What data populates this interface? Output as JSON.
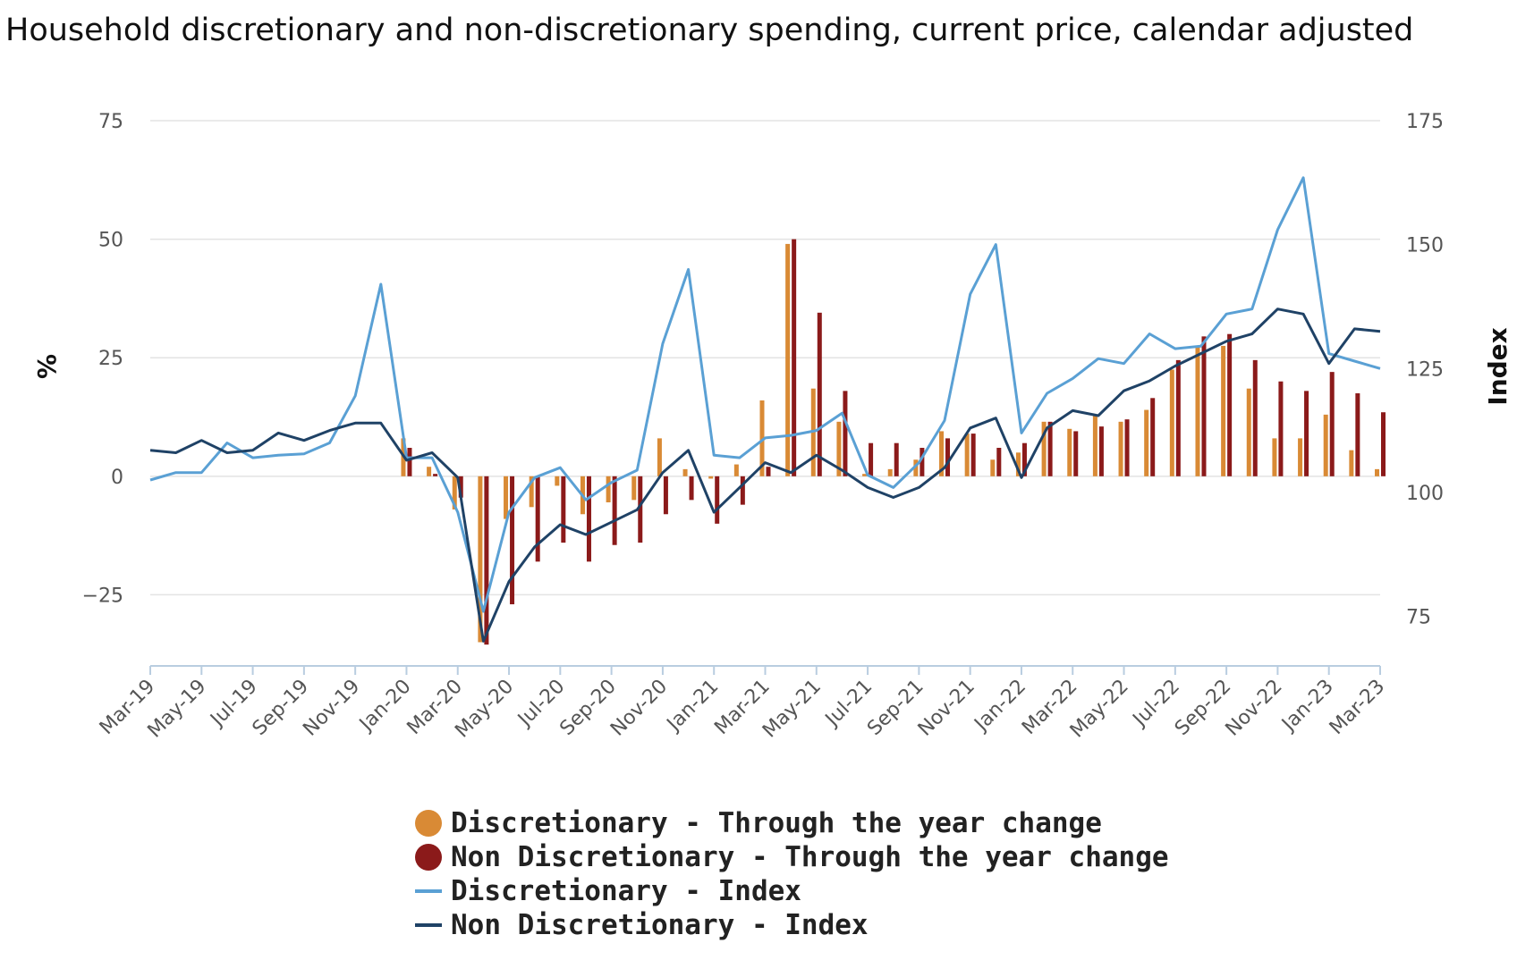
{
  "title": "Household discretionary and non-discretionary spending, current price, calendar adjusted",
  "chart_data": {
    "type": "bar",
    "title": "Household discretionary and non-discretionary spending, current price, calendar adjusted",
    "ylabel": "%",
    "y2label": "Index",
    "ylim": [
      -40,
      75
    ],
    "y2lim": [
      65,
      175
    ],
    "yticks": [
      -25,
      0,
      25,
      50,
      75
    ],
    "y2ticks": [
      75,
      100,
      125,
      150,
      175
    ],
    "ytick_labels": [
      "−25",
      "0",
      "25",
      "50",
      "75"
    ],
    "y2tick_labels": [
      "75",
      "100",
      "125",
      "150",
      "175"
    ],
    "grid": true,
    "legend_position": "bottom",
    "x": [
      "Mar-19",
      "Apr-19",
      "May-19",
      "Jun-19",
      "Jul-19",
      "Aug-19",
      "Sep-19",
      "Oct-19",
      "Nov-19",
      "Dec-19",
      "Jan-20",
      "Feb-20",
      "Mar-20",
      "Apr-20",
      "May-20",
      "Jun-20",
      "Jul-20",
      "Aug-20",
      "Sep-20",
      "Oct-20",
      "Nov-20",
      "Dec-20",
      "Jan-21",
      "Feb-21",
      "Mar-21",
      "Apr-21",
      "May-21",
      "Jun-21",
      "Jul-21",
      "Aug-21",
      "Sep-21",
      "Oct-21",
      "Nov-21",
      "Dec-21",
      "Jan-22",
      "Feb-22",
      "Mar-22",
      "Apr-22",
      "May-22",
      "Jun-22",
      "Jul-22",
      "Aug-22",
      "Sep-22",
      "Oct-22",
      "Nov-22",
      "Dec-22",
      "Jan-23",
      "Feb-23",
      "Mar-23"
    ],
    "xtick_labels": [
      "Mar-19",
      "May-19",
      "Jul-19",
      "Sep-19",
      "Nov-19",
      "Jan-20",
      "Mar-20",
      "May-20",
      "Jul-20",
      "Sep-20",
      "Nov-20",
      "Jan-21",
      "Mar-21",
      "May-21",
      "Jul-21",
      "Sep-21",
      "Nov-21",
      "Jan-22",
      "Mar-22",
      "May-22",
      "Jul-22",
      "Sep-22",
      "Nov-22",
      "Jan-23",
      "Mar-23"
    ],
    "series": [
      {
        "name": "Discretionary - Through the year change",
        "type": "bar",
        "axis": "left",
        "color": "#d98a35",
        "values": [
          null,
          null,
          null,
          null,
          null,
          null,
          null,
          null,
          null,
          null,
          8,
          2,
          -7,
          -35,
          -9,
          -6.5,
          -2,
          -8,
          -5.5,
          -5,
          8,
          1.5,
          -0.5,
          2.5,
          16,
          49,
          18.5,
          11.5,
          0.5,
          1.5,
          3.5,
          9.5,
          9,
          3.5,
          5,
          11.5,
          10,
          13,
          11.5,
          14,
          22.5,
          27.5,
          27.5,
          18.5,
          8,
          8,
          13,
          5.5,
          1.5
        ]
      },
      {
        "name": "Non Discretionary - Through the year change",
        "type": "bar",
        "axis": "left",
        "color": "#8b1a1a",
        "values": [
          null,
          null,
          null,
          null,
          null,
          null,
          null,
          null,
          null,
          null,
          6,
          0.5,
          -4.5,
          -35.5,
          -27,
          -18,
          -14,
          -18,
          -14.5,
          -14,
          -8,
          -5,
          -10,
          -6,
          2,
          50,
          34.5,
          18,
          7,
          7,
          6,
          8,
          9,
          6,
          7,
          11.5,
          9.5,
          10.5,
          12,
          16.5,
          24.5,
          29.5,
          30,
          24.5,
          20,
          18,
          22,
          17.5,
          13.5
        ]
      },
      {
        "name": "Discretionary - Index",
        "type": "line",
        "axis": "right",
        "color": "#5aa0d4",
        "values": [
          102.5,
          104,
          104,
          110,
          107,
          107.5,
          107.8,
          110,
          119.5,
          142,
          107,
          107,
          96,
          76,
          96,
          103,
          105,
          98.5,
          102,
          104.5,
          130,
          145,
          107.5,
          107,
          111,
          111.5,
          112.5,
          116,
          103.5,
          101,
          106,
          114.5,
          140,
          150,
          112,
          120,
          123,
          127,
          126,
          132,
          129,
          129.5,
          136,
          137,
          153,
          163.5,
          128,
          126.5,
          125
        ]
      },
      {
        "name": "Non Discretionary - Index",
        "type": "line",
        "axis": "right",
        "color": "#1f4266",
        "values": [
          108.5,
          108,
          110.5,
          108,
          108.5,
          112,
          110.5,
          112.5,
          114,
          114,
          106.5,
          108,
          103,
          70,
          82,
          89,
          93.5,
          91.5,
          94,
          96.5,
          104,
          108.5,
          96,
          101,
          106,
          104,
          107.5,
          104.5,
          101,
          99,
          101,
          105,
          113,
          115,
          103,
          113,
          116.5,
          115.5,
          120.5,
          122.5,
          125.5,
          128,
          130.5,
          132,
          137,
          136,
          126,
          133,
          132.5
        ]
      }
    ]
  },
  "legend": [
    {
      "label": "Discretionary - Through the year change",
      "swatch": "circle",
      "color": "#d98a35"
    },
    {
      "label": "Non Discretionary - Through the year change",
      "swatch": "circle",
      "color": "#8b1a1a"
    },
    {
      "label": "Discretionary - Index",
      "swatch": "line",
      "color": "#5aa0d4"
    },
    {
      "label": "Non Discretionary - Index",
      "swatch": "line",
      "color": "#1f4266"
    }
  ]
}
